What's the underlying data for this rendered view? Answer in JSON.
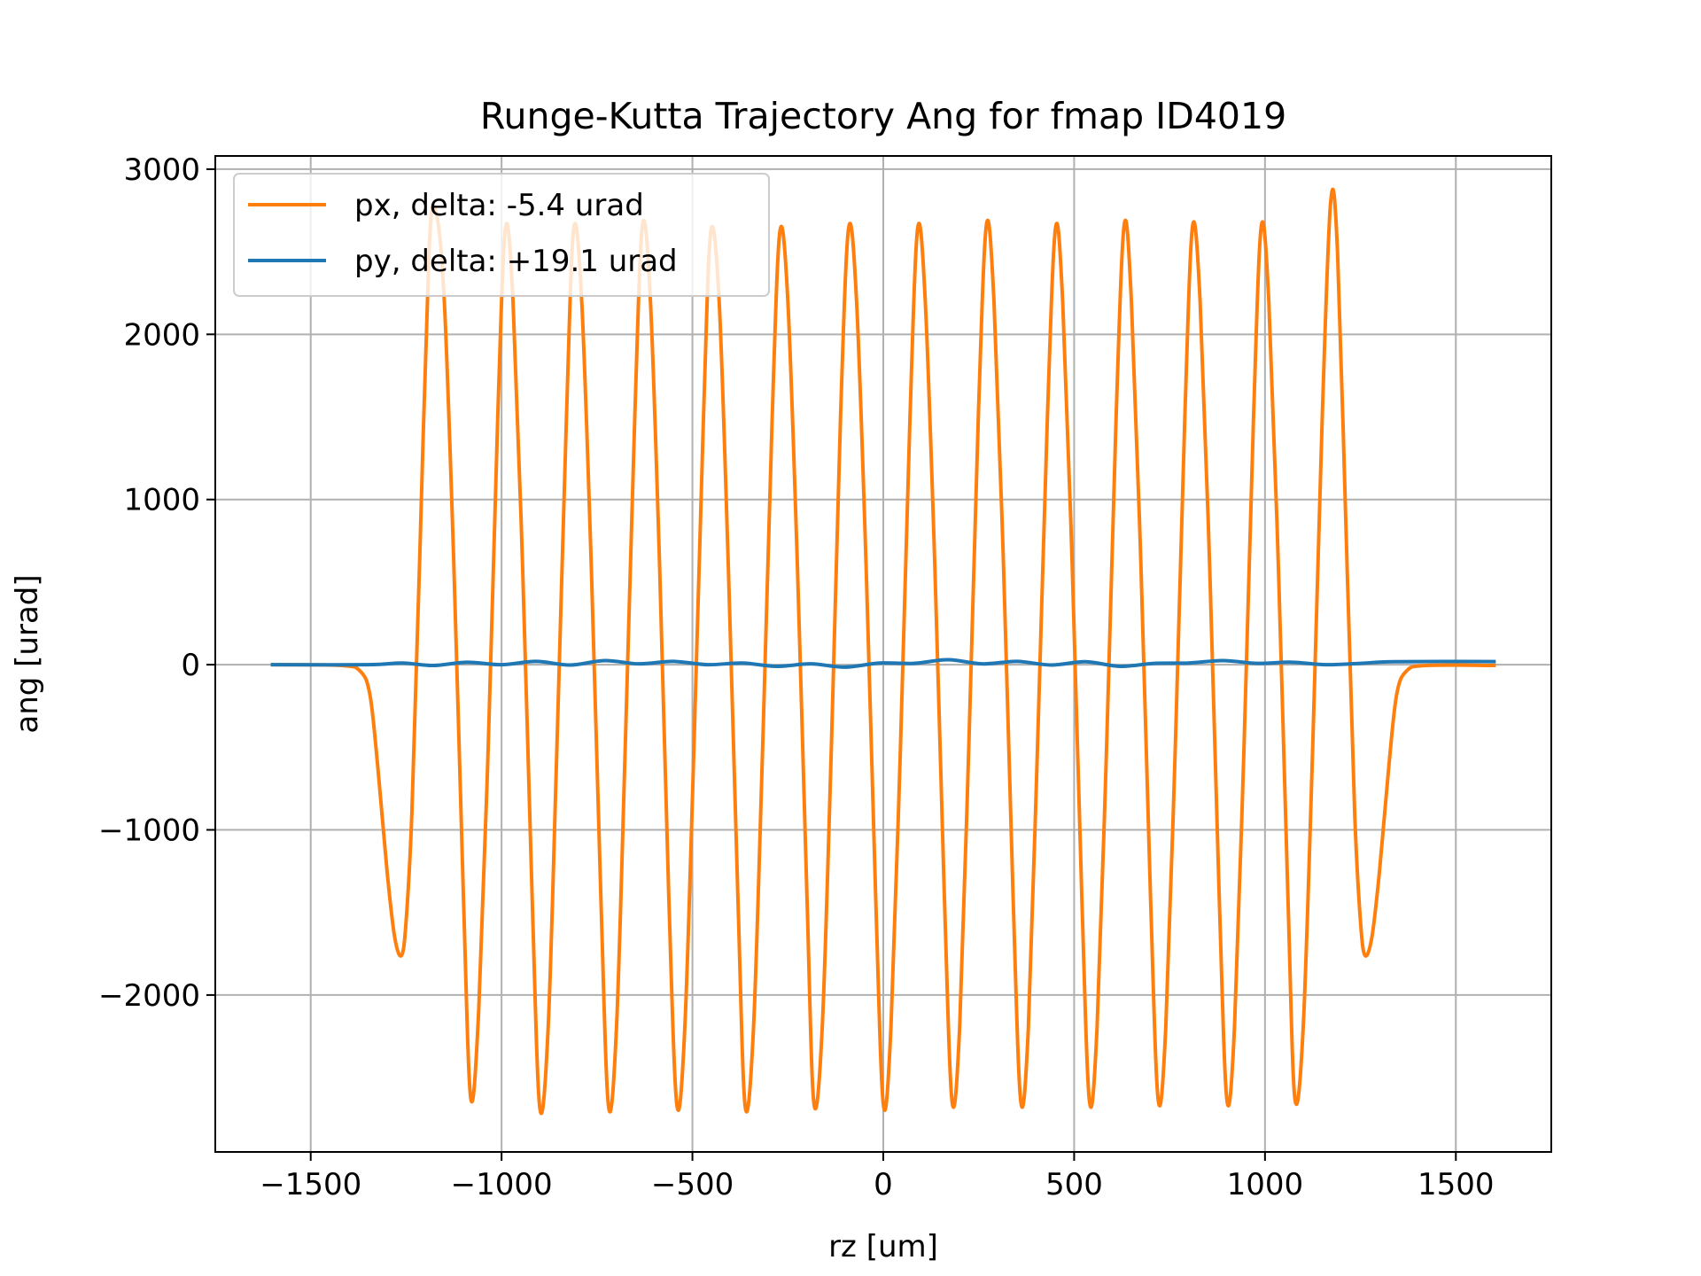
{
  "chart_data": {
    "type": "line",
    "title": "Runge-Kutta Trajectory Ang for fmap ID4019",
    "xlabel": "rz [um]",
    "ylabel": "ang [urad]",
    "xlim": [
      -1750,
      1750
    ],
    "ylim": [
      -2950,
      3080
    ],
    "xticks": [
      -1500,
      -1000,
      -500,
      0,
      500,
      1000,
      1500
    ],
    "xtick_labels": [
      "−1500",
      "−1000",
      "−500",
      "0",
      "500",
      "1000",
      "1500"
    ],
    "yticks": [
      -2000,
      -1000,
      0,
      1000,
      2000,
      3000
    ],
    "ytick_labels": [
      "−2000",
      "−1000",
      "0",
      "1000",
      "2000",
      "3000"
    ],
    "grid": true,
    "legend_position": "upper-left",
    "series": [
      {
        "name": "px, delta: -5.4 urad",
        "color": "#ff7f0e",
        "x": [
          -1600,
          -1420,
          -1370,
          -1345,
          -1325,
          -1300,
          -1280,
          -1262,
          -1250,
          -1235,
          -1215,
          -1190,
          -1172,
          -1150,
          -1125,
          -1100,
          -1081,
          -1060,
          -1035,
          -1010,
          -990,
          -970,
          -945,
          -920,
          -900,
          -878,
          -855,
          -830,
          -811,
          -790,
          -765,
          -740,
          -720,
          -699,
          -676,
          -651,
          -631,
          -610,
          -586,
          -562,
          -541,
          -520,
          -496,
          -471,
          -452,
          -430,
          -406,
          -381,
          -362,
          -340,
          -316,
          -291,
          -271,
          -250,
          -225,
          -200,
          -182,
          -160,
          -136,
          -112,
          -91,
          -70,
          -45,
          -20,
          0,
          20,
          45,
          70,
          90,
          110,
          135,
          160,
          180,
          200,
          224,
          249,
          270,
          290,
          315,
          340,
          360,
          380,
          404,
          430,
          451,
          470,
          495,
          520,
          540,
          560,
          585,
          610,
          631,
          650,
          675,
          700,
          720,
          740,
          765,
          790,
          810,
          830,
          855,
          880,
          900,
          920,
          945,
          970,
          990,
          1010,
          1035,
          1060,
          1078,
          1100,
          1125,
          1150,
          1172,
          1190,
          1215,
          1235,
          1250,
          1262,
          1280,
          1300,
          1325,
          1345,
          1370,
          1420,
          1600
        ],
        "y": [
          0,
          -5,
          -40,
          -180,
          -600,
          -1250,
          -1650,
          -1760,
          -1550,
          -900,
          600,
          2500,
          2740,
          2200,
          600,
          -1400,
          -2620,
          -2100,
          -500,
          1500,
          2640,
          2200,
          600,
          -1400,
          -2680,
          -2200,
          -500,
          1500,
          2640,
          2200,
          600,
          -1400,
          -2670,
          -2200,
          -500,
          1500,
          2660,
          2200,
          600,
          -1400,
          -2660,
          -2200,
          -500,
          1500,
          2620,
          2200,
          600,
          -1400,
          -2670,
          -2200,
          -500,
          1500,
          2620,
          2200,
          600,
          -1400,
          -2650,
          -2200,
          -500,
          1500,
          2640,
          2200,
          600,
          -1400,
          -2660,
          -2200,
          -500,
          1500,
          2640,
          2200,
          600,
          -1400,
          -2640,
          -2200,
          -500,
          1500,
          2660,
          2200,
          600,
          -1400,
          -2640,
          -2200,
          -500,
          1500,
          2640,
          2200,
          600,
          -1400,
          -2640,
          -2200,
          -500,
          1500,
          2660,
          2200,
          600,
          -1400,
          -2630,
          -2200,
          -500,
          1500,
          2650,
          2200,
          600,
          -1400,
          -2630,
          -2200,
          -500,
          1500,
          2650,
          2200,
          600,
          -1400,
          -2620,
          -2200,
          -500,
          1500,
          2800,
          2500,
          600,
          -900,
          -1550,
          -1760,
          -1650,
          -1250,
          -600,
          -180,
          -40,
          -5,
          -5
        ]
      },
      {
        "name": "py, delta: +19.1 urad",
        "color": "#1f77b4",
        "x": [
          -1600,
          -1350,
          -1260,
          -1180,
          -1090,
          -1000,
          -910,
          -820,
          -730,
          -640,
          -550,
          -460,
          -370,
          -280,
          -190,
          -100,
          -10,
          80,
          170,
          260,
          350,
          440,
          530,
          620,
          710,
          800,
          890,
          980,
          1070,
          1160,
          1250,
          1340,
          1600
        ],
        "y": [
          0,
          0,
          10,
          -5,
          15,
          0,
          20,
          -2,
          25,
          5,
          20,
          0,
          10,
          -10,
          5,
          -15,
          10,
          8,
          30,
          5,
          20,
          -2,
          18,
          -10,
          8,
          10,
          25,
          8,
          15,
          0,
          8,
          18,
          19
        ]
      }
    ]
  }
}
